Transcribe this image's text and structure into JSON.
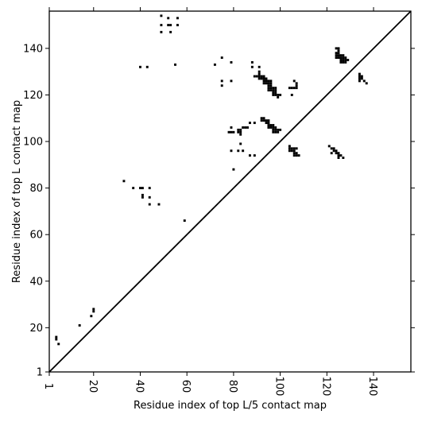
{
  "chart_data": {
    "type": "heatmap",
    "xlabel": "Residue index of top L/5 contact map",
    "ylabel": "Residue index of top L contact map",
    "xlim": [
      1,
      156
    ],
    "ylim": [
      1,
      156
    ],
    "x_ticks": [
      1,
      20,
      40,
      60,
      80,
      100,
      120,
      140
    ],
    "y_ticks": [
      1,
      20,
      40,
      60,
      80,
      100,
      120,
      140
    ],
    "x_tick_rotation": 90,
    "diagonal": true,
    "grid": false,
    "color": "#000000",
    "points": [
      [
        4,
        16
      ],
      [
        4,
        15
      ],
      [
        5,
        13
      ],
      [
        14,
        21
      ],
      [
        19,
        25
      ],
      [
        20,
        27
      ],
      [
        20,
        28
      ],
      [
        33,
        83
      ],
      [
        37,
        80
      ],
      [
        40,
        80
      ],
      [
        41,
        80
      ],
      [
        41,
        77
      ],
      [
        41,
        76
      ],
      [
        44,
        80
      ],
      [
        44,
        76
      ],
      [
        44,
        73
      ],
      [
        48,
        73
      ],
      [
        59,
        66
      ],
      [
        40,
        132
      ],
      [
        43,
        132
      ],
      [
        55,
        133
      ],
      [
        49,
        154
      ],
      [
        52,
        153
      ],
      [
        56,
        153
      ],
      [
        49,
        150
      ],
      [
        52,
        150
      ],
      [
        53,
        150
      ],
      [
        56,
        150
      ],
      [
        49,
        147
      ],
      [
        53,
        147
      ],
      [
        72,
        133
      ],
      [
        75,
        136
      ],
      [
        79,
        134
      ],
      [
        75,
        126
      ],
      [
        79,
        126
      ],
      [
        75,
        124
      ],
      [
        79,
        106
      ],
      [
        78,
        104
      ],
      [
        79,
        104
      ],
      [
        80,
        104
      ],
      [
        82,
        105
      ],
      [
        83,
        105
      ],
      [
        82,
        104
      ],
      [
        83,
        104
      ],
      [
        83,
        103
      ],
      [
        84,
        106
      ],
      [
        85,
        106
      ],
      [
        86,
        106
      ],
      [
        87,
        108
      ],
      [
        89,
        108
      ],
      [
        79,
        96
      ],
      [
        82,
        96
      ],
      [
        84,
        96
      ],
      [
        83,
        99
      ],
      [
        87,
        94
      ],
      [
        89,
        94
      ],
      [
        80,
        88
      ],
      [
        88,
        134
      ],
      [
        88,
        132
      ],
      [
        91,
        132
      ],
      [
        91,
        130
      ],
      [
        91,
        129
      ],
      [
        89,
        128
      ],
      [
        90,
        128
      ],
      [
        91,
        128
      ],
      [
        92,
        128
      ],
      [
        93,
        128
      ],
      [
        91,
        127
      ],
      [
        92,
        127
      ],
      [
        93,
        127
      ],
      [
        94,
        127
      ],
      [
        93,
        126
      ],
      [
        94,
        126
      ],
      [
        95,
        126
      ],
      [
        96,
        126
      ],
      [
        93,
        125
      ],
      [
        94,
        125
      ],
      [
        95,
        125
      ],
      [
        96,
        125
      ],
      [
        95,
        124
      ],
      [
        96,
        124
      ],
      [
        95,
        123
      ],
      [
        96,
        123
      ],
      [
        97,
        123
      ],
      [
        98,
        123
      ],
      [
        95,
        122
      ],
      [
        96,
        122
      ],
      [
        97,
        122
      ],
      [
        98,
        122
      ],
      [
        97,
        121
      ],
      [
        98,
        121
      ],
      [
        97,
        120
      ],
      [
        98,
        120
      ],
      [
        99,
        120
      ],
      [
        100,
        120
      ],
      [
        99,
        119
      ],
      [
        92,
        110
      ],
      [
        93,
        110
      ],
      [
        92,
        109
      ],
      [
        93,
        109
      ],
      [
        94,
        109
      ],
      [
        95,
        109
      ],
      [
        94,
        108
      ],
      [
        95,
        108
      ],
      [
        95,
        107
      ],
      [
        96,
        107
      ],
      [
        97,
        107
      ],
      [
        95,
        106
      ],
      [
        96,
        106
      ],
      [
        97,
        106
      ],
      [
        98,
        106
      ],
      [
        97,
        105
      ],
      [
        98,
        105
      ],
      [
        99,
        105
      ],
      [
        100,
        105
      ],
      [
        97,
        104
      ],
      [
        98,
        104
      ],
      [
        99,
        104
      ],
      [
        104,
        123
      ],
      [
        105,
        123
      ],
      [
        106,
        123
      ],
      [
        107,
        123
      ],
      [
        107,
        124
      ],
      [
        107,
        125
      ],
      [
        106,
        126
      ],
      [
        105,
        120
      ],
      [
        104,
        98
      ],
      [
        104,
        97
      ],
      [
        105,
        97
      ],
      [
        106,
        97
      ],
      [
        104,
        96
      ],
      [
        105,
        96
      ],
      [
        107,
        97
      ],
      [
        106,
        96
      ],
      [
        106,
        95
      ],
      [
        107,
        95
      ],
      [
        106,
        94
      ],
      [
        107,
        94
      ],
      [
        108,
        94
      ],
      [
        124,
        140
      ],
      [
        125,
        140
      ],
      [
        125,
        139
      ],
      [
        124,
        138
      ],
      [
        125,
        138
      ],
      [
        124,
        137
      ],
      [
        125,
        137
      ],
      [
        126,
        137
      ],
      [
        127,
        137
      ],
      [
        124,
        136
      ],
      [
        125,
        136
      ],
      [
        126,
        136
      ],
      [
        127,
        136
      ],
      [
        128,
        136
      ],
      [
        126,
        135
      ],
      [
        127,
        135
      ],
      [
        128,
        135
      ],
      [
        129,
        135
      ],
      [
        126,
        134
      ],
      [
        127,
        134
      ],
      [
        128,
        134
      ],
      [
        121,
        98
      ],
      [
        122,
        97
      ],
      [
        123,
        97
      ],
      [
        123,
        96
      ],
      [
        124,
        96
      ],
      [
        124,
        95
      ],
      [
        125,
        95
      ],
      [
        122,
        95
      ],
      [
        125,
        94
      ],
      [
        126,
        94
      ],
      [
        125,
        93
      ],
      [
        127,
        93
      ],
      [
        134,
        129
      ],
      [
        134,
        128
      ],
      [
        135,
        128
      ],
      [
        135,
        127
      ],
      [
        134,
        127
      ],
      [
        134,
        126
      ],
      [
        136,
        126
      ],
      [
        137,
        125
      ]
    ]
  }
}
